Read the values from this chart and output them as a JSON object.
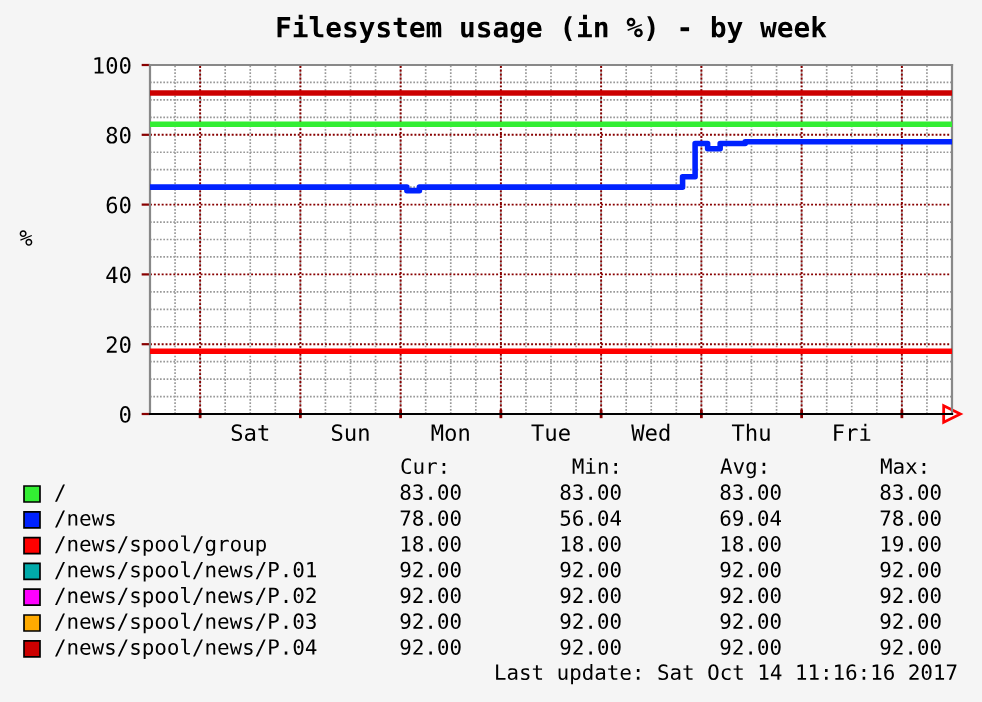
{
  "chart_data": {
    "type": "step",
    "title": "Filesystem usage (in %) - by week",
    "ylabel": "%",
    "ylim": [
      0,
      100
    ],
    "yticks": [
      0,
      20,
      40,
      60,
      80,
      100
    ],
    "categories": [
      null,
      null,
      null,
      null,
      null,
      null,
      null,
      null,
      "Sat",
      null,
      null,
      null,
      null,
      null,
      null,
      null,
      "Sun",
      null,
      null,
      null,
      null,
      null,
      null,
      null,
      "Mon",
      null,
      null,
      null,
      null,
      null,
      null,
      null,
      "Tue",
      null,
      null,
      null,
      null,
      null,
      null,
      null,
      "Wed",
      null,
      null,
      null,
      null,
      null,
      null,
      null,
      "Thu",
      null,
      null,
      null,
      null,
      null,
      null,
      null,
      "Fri",
      null,
      null,
      null,
      null,
      null,
      null,
      null,
      null
    ],
    "grid": true,
    "legend": "bottom",
    "series": [
      {
        "name": "/",
        "color": "#33ee33",
        "values": [
          83,
          83,
          83,
          83,
          83,
          83,
          83,
          83,
          83,
          83,
          83,
          83,
          83,
          83,
          83,
          83,
          83,
          83,
          83,
          83,
          83,
          83,
          83,
          83,
          83,
          83,
          83,
          83,
          83,
          83,
          83,
          83,
          83,
          83,
          83,
          83,
          83,
          83,
          83,
          83,
          83,
          83,
          83,
          83,
          83,
          83,
          83,
          83,
          83,
          83,
          83,
          83,
          83,
          83,
          83,
          83,
          83,
          83,
          83,
          83,
          83,
          83,
          83,
          83,
          83
        ]
      },
      {
        "name": "/news",
        "color": "#0022ff",
        "values": [
          65,
          65,
          65,
          65,
          65,
          65,
          65,
          65,
          65,
          65,
          65,
          65,
          65,
          65,
          65,
          65,
          65,
          65,
          65,
          65,
          65,
          64,
          65,
          65,
          65,
          65,
          65,
          65,
          65,
          65,
          65,
          65,
          65,
          65,
          65,
          65,
          65,
          65,
          65,
          65,
          65,
          65,
          65,
          68,
          77.5,
          76,
          77.5,
          77.5,
          78,
          78,
          78,
          78,
          78,
          78,
          78,
          78,
          78,
          78,
          78,
          78,
          78,
          78,
          78,
          78,
          78
        ]
      },
      {
        "name": "/news/spool/group",
        "color": "#ff0000",
        "values": [
          18,
          18,
          18,
          18,
          18,
          18,
          18,
          18,
          18,
          18,
          18,
          18,
          18,
          18,
          18,
          18,
          18,
          18,
          18,
          18,
          18,
          18,
          18,
          18,
          18,
          18,
          18,
          18,
          18,
          18,
          18,
          18,
          18,
          18,
          18,
          18,
          18,
          18,
          18,
          18,
          18,
          18,
          18,
          18,
          18,
          18,
          18,
          18,
          18,
          18,
          18,
          18,
          18,
          18,
          18,
          18,
          18,
          18,
          18,
          18,
          18,
          18,
          18,
          18,
          18
        ]
      },
      {
        "name": "/news/spool/news/P.01",
        "color": "#00aaaa",
        "values": [
          null,
          null,
          null,
          null,
          null,
          null,
          null,
          null,
          null,
          null,
          null,
          null,
          null,
          null,
          null,
          null,
          null,
          null,
          null,
          null,
          null,
          null,
          null,
          null,
          null,
          null,
          null,
          null,
          null,
          null,
          null,
          null,
          null,
          null,
          null,
          null,
          null,
          null,
          null,
          null,
          null,
          null,
          null,
          null,
          null,
          null,
          null,
          null,
          null,
          null,
          null,
          null,
          null,
          null,
          null,
          null,
          null,
          null,
          null,
          null,
          null,
          null,
          null,
          null,
          null
        ]
      },
      {
        "name": "/news/spool/news/P.02",
        "color": "#ff00ff",
        "values": [
          null,
          null,
          null,
          null,
          null,
          null,
          null,
          null,
          null,
          null,
          null,
          null,
          null,
          null,
          null,
          null,
          null,
          null,
          null,
          null,
          null,
          null,
          null,
          null,
          null,
          null,
          null,
          null,
          null,
          null,
          null,
          null,
          null,
          null,
          null,
          null,
          null,
          null,
          null,
          null,
          null,
          null,
          null,
          null,
          null,
          null,
          null,
          null,
          null,
          null,
          null,
          null,
          null,
          null,
          null,
          null,
          null,
          null,
          null,
          null,
          null,
          null,
          null,
          null,
          null
        ]
      },
      {
        "name": "/news/spool/news/P.03",
        "color": "#ffaa00",
        "values": [
          null,
          null,
          null,
          null,
          null,
          null,
          null,
          null,
          null,
          null,
          null,
          null,
          null,
          null,
          null,
          null,
          null,
          null,
          null,
          null,
          null,
          null,
          null,
          null,
          null,
          null,
          null,
          null,
          null,
          null,
          null,
          null,
          null,
          null,
          null,
          null,
          null,
          null,
          null,
          null,
          null,
          null,
          null,
          null,
          null,
          null,
          null,
          null,
          null,
          null,
          null,
          null,
          null,
          null,
          null,
          null,
          null,
          null,
          null,
          null,
          null,
          null,
          null,
          null,
          null
        ]
      },
      {
        "name": "/news/spool/news/P.04",
        "color": "#cc0000",
        "values": [
          92,
          92,
          92,
          92,
          92,
          92,
          92,
          92,
          92,
          92,
          92,
          92,
          92,
          92,
          92,
          92,
          92,
          92,
          92,
          92,
          92,
          92,
          92,
          92,
          92,
          92,
          92,
          92,
          92,
          92,
          92,
          92,
          92,
          92,
          92,
          92,
          92,
          92,
          92,
          92,
          92,
          92,
          92,
          92,
          92,
          92,
          92,
          92,
          92,
          92,
          92,
          92,
          92,
          92,
          92,
          92,
          92,
          92,
          92,
          92,
          92,
          92,
          92,
          92,
          92
        ]
      }
    ],
    "annotations": [
      "Cur:",
      "Min:",
      "Avg:",
      "Max:",
      "83.00",
      "83.00",
      "83.00",
      "83.00",
      "78.00",
      "56.04",
      "69.04",
      "78.00",
      "18.00",
      "18.00",
      "18.00",
      "19.00",
      "92.00",
      "92.00",
      "92.00",
      "92.00",
      "92.00",
      "92.00",
      "92.00",
      "92.00",
      "92.00",
      "92.00",
      "92.00",
      "92.00",
      "92.00",
      "92.00",
      "92.00",
      "92.00",
      "Last update: Sat Oct 14 11:16:16 2017"
    ]
  }
}
